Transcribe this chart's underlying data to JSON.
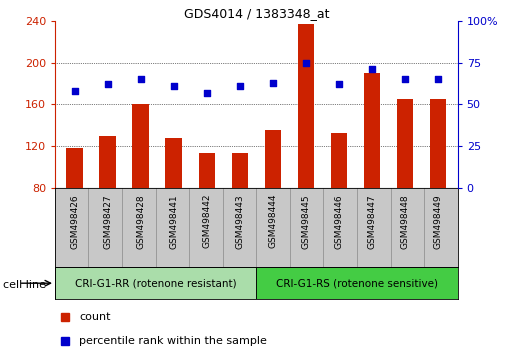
{
  "title": "GDS4014 / 1383348_at",
  "samples": [
    "GSM498426",
    "GSM498427",
    "GSM498428",
    "GSM498441",
    "GSM498442",
    "GSM498443",
    "GSM498444",
    "GSM498445",
    "GSM498446",
    "GSM498447",
    "GSM498448",
    "GSM498449"
  ],
  "counts": [
    118,
    130,
    160,
    128,
    113,
    113,
    135,
    237,
    133,
    190,
    165,
    165
  ],
  "percentiles": [
    58,
    62,
    65,
    61,
    57,
    61,
    63,
    75,
    62,
    71,
    65,
    65
  ],
  "ylim_left": [
    80,
    240
  ],
  "ylim_right": [
    0,
    100
  ],
  "yticks_left": [
    80,
    120,
    160,
    200,
    240
  ],
  "yticks_right": [
    0,
    25,
    50,
    75,
    100
  ],
  "bar_color": "#cc2200",
  "dot_color": "#0000cc",
  "group1_label": "CRI-G1-RR (rotenone resistant)",
  "group2_label": "CRI-G1-RS (rotenone sensitive)",
  "group1_count": 6,
  "group2_count": 6,
  "cell_line_label": "cell line",
  "legend_bar": "count",
  "legend_dot": "percentile rank within the sample",
  "group1_bg": "#aaddaa",
  "group2_bg": "#44cc44",
  "xtick_bg": "#c8c8c8",
  "xtick_border": "#888888"
}
